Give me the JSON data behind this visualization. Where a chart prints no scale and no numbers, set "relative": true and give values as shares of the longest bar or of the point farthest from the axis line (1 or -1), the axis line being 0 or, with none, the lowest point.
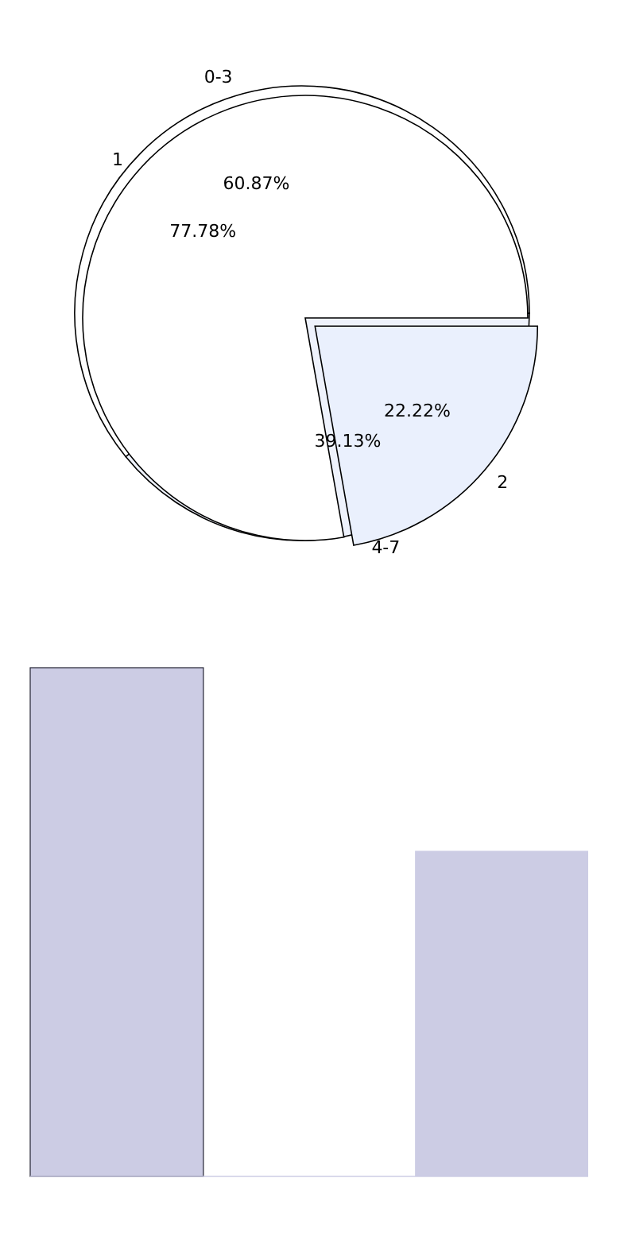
{
  "chart_data": [
    {
      "type": "pie",
      "categories": [
        "4-7",
        "0-3"
      ],
      "values": [
        39.13,
        60.87
      ],
      "value_labels": [
        "39.13%",
        "60.87%"
      ],
      "colors": [
        "#eef2fc",
        "#ffffff"
      ]
    },
    {
      "type": "pie",
      "categories": [
        "2",
        "1"
      ],
      "values": [
        22.22,
        77.78
      ],
      "value_labels": [
        "22.22%",
        "77.78%"
      ],
      "colors": [
        "#eaf0fd",
        "#ffffff"
      ]
    },
    {
      "type": "bar",
      "relative": true,
      "categories": [
        null,
        null
      ],
      "values": [
        1,
        0.64
      ],
      "color": "#cccce4"
    }
  ]
}
